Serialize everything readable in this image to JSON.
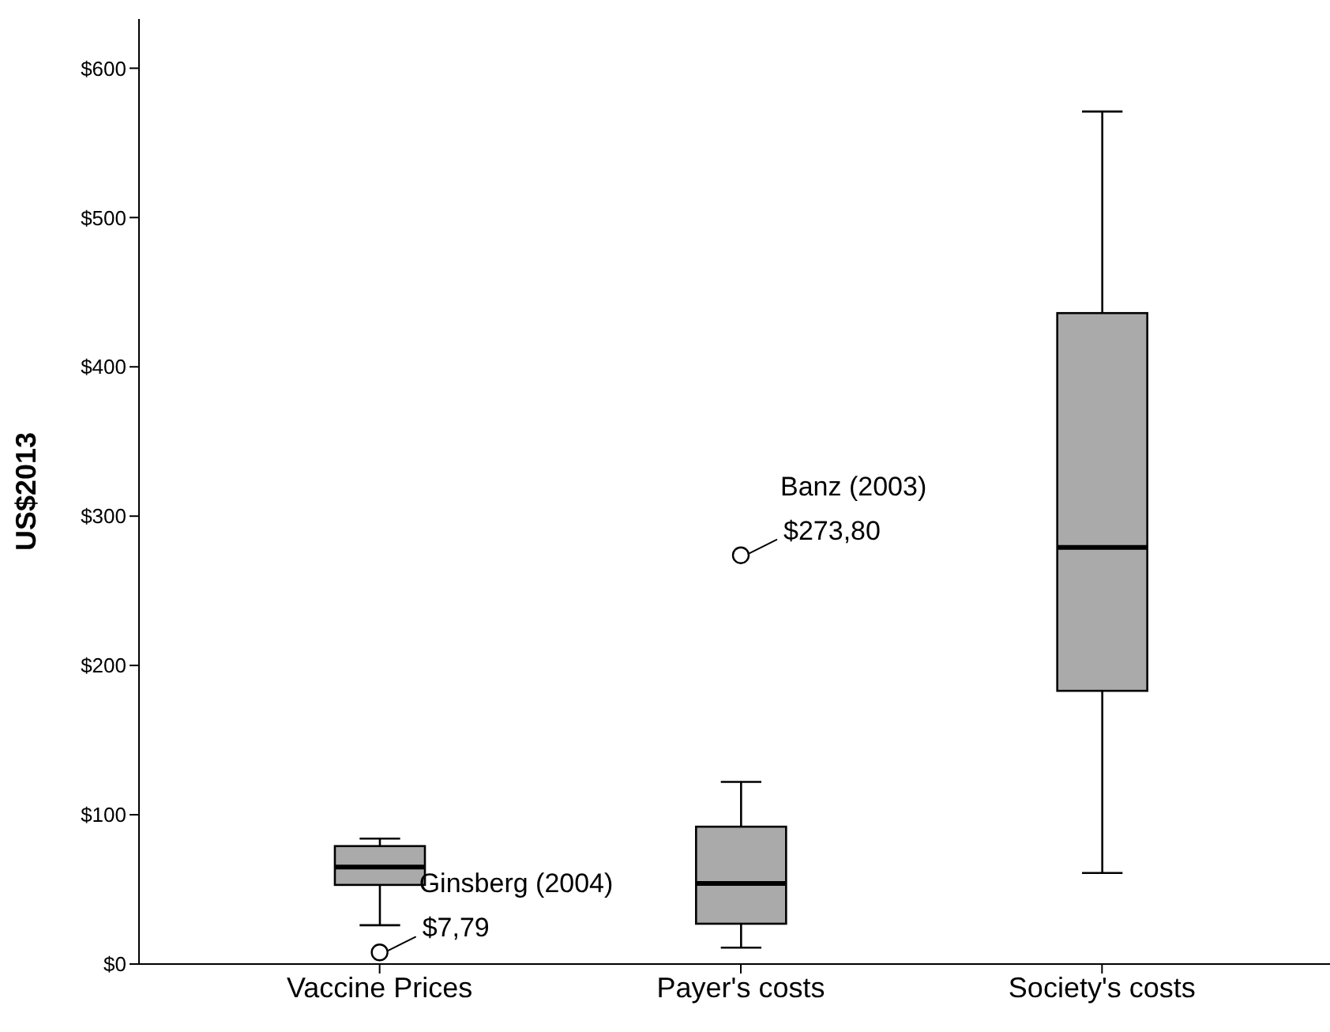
{
  "chart_data": {
    "type": "box",
    "ylabel": "US$2013",
    "categories": [
      "Vaccine Prices",
      "Payer's costs",
      "Society's costs"
    ],
    "color": "#aaaaaa",
    "boxes": [
      {
        "low": 26,
        "q1": 53,
        "median": 65,
        "q3": 79,
        "high": 84,
        "outliers": [
          7.79
        ]
      },
      {
        "low": 11,
        "q1": 27,
        "median": 54,
        "q3": 92,
        "high": 122,
        "outliers": [
          273.8
        ]
      },
      {
        "low": 61,
        "q1": 183,
        "median": 279,
        "q3": 436,
        "high": 571
      }
    ],
    "ylim": [
      0,
      633
    ],
    "yticks": [
      {
        "value": 0,
        "label": "$0"
      },
      {
        "value": 100,
        "label": "$100"
      },
      {
        "value": 200,
        "label": "$200"
      },
      {
        "value": 300,
        "label": "$300"
      },
      {
        "value": 400,
        "label": "$400"
      },
      {
        "value": 500,
        "label": "$500"
      },
      {
        "value": 600,
        "label": "$600"
      }
    ],
    "grid": false,
    "annotations": [
      "Ginsberg (2004)",
      "$7,79",
      "Banz (2003)",
      "$273,80"
    ]
  }
}
